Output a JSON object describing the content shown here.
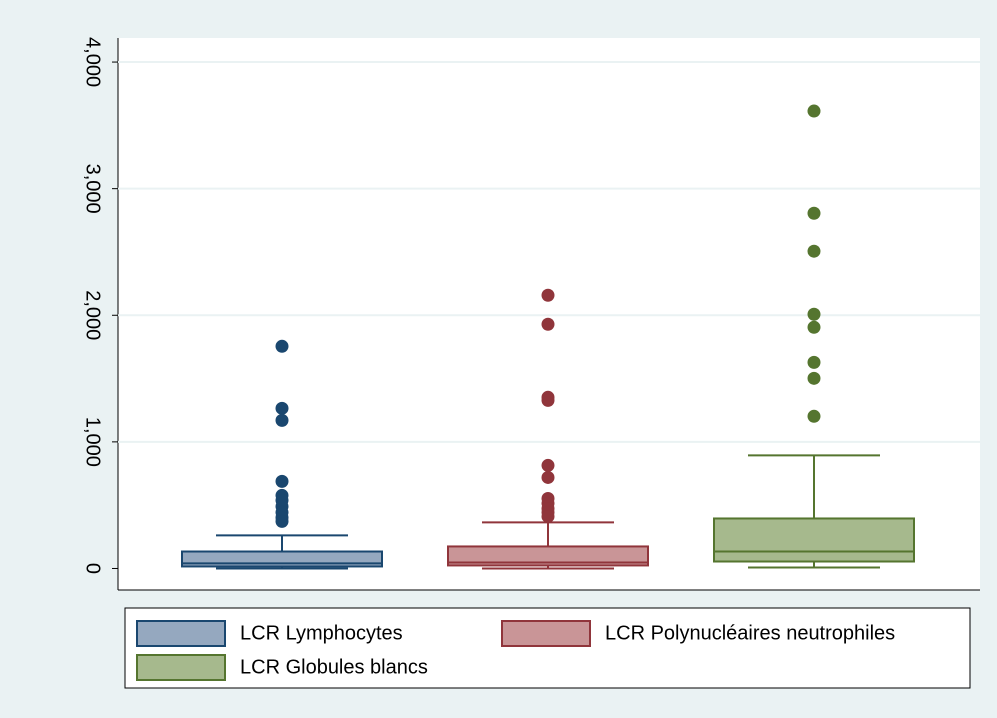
{
  "chart_data": {
    "type": "box",
    "ylim": [
      -170,
      4190
    ],
    "yticks": [
      0,
      {
        "value": 1000,
        "label": "1,000"
      },
      {
        "value": 2000,
        "label": "2,000"
      },
      {
        "value": 3000,
        "label": "3,000"
      },
      {
        "value": 4000,
        "label": "4,000"
      }
    ],
    "grid": true,
    "series": [
      {
        "name": "LCR Lymphocytes",
        "color": "#1a476f",
        "fill": "#95a8bf",
        "whisker_low": 0,
        "q1": 16,
        "median": 40,
        "q3": 134,
        "whisker_high": 261,
        "outliers": [
          1755,
          1265,
          1170,
          688,
          577,
          538,
          490,
          443,
          403,
          372
        ]
      },
      {
        "name": "LCR Polynucléaires neutrophiles",
        "color": "#90353b",
        "fill": "#c99597",
        "whisker_low": 0,
        "q1": 24,
        "median": 47,
        "q3": 174,
        "whisker_high": 364,
        "outliers": [
          2158,
          1929,
          1352,
          1328,
          814,
          719,
          553,
          514,
          474,
          443,
          411
        ]
      },
      {
        "name": "LCR Globules blancs",
        "color": "#55752f",
        "fill": "#a6b98d",
        "whisker_low": 8,
        "q1": 55,
        "median": 134,
        "q3": 395,
        "whisker_high": 893,
        "outliers": [
          3613,
          2806,
          2506,
          2008,
          1905,
          1628,
          1502,
          1202
        ]
      }
    ]
  }
}
